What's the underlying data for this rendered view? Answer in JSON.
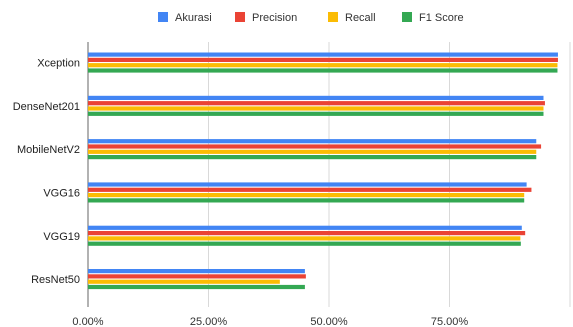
{
  "chart_data": {
    "type": "bar",
    "orientation": "horizontal",
    "categories": [
      "Xception",
      "DenseNet201",
      "MobileNetV2",
      "VGG16",
      "VGG19",
      "ResNet50"
    ],
    "series": [
      {
        "name": "Akurasi",
        "color": "#4285f4",
        "values": [
          97.5,
          94.5,
          93.0,
          91.0,
          90.0,
          45.0
        ]
      },
      {
        "name": "Precision",
        "color": "#ea4335",
        "values": [
          97.5,
          94.8,
          94.0,
          92.0,
          90.7,
          45.2
        ]
      },
      {
        "name": "Recall",
        "color": "#fbbc04",
        "values": [
          97.4,
          94.5,
          93.0,
          90.5,
          89.7,
          39.8
        ]
      },
      {
        "name": "F1 Score",
        "color": "#34a853",
        "values": [
          97.4,
          94.5,
          93.0,
          90.5,
          89.8,
          45.0
        ]
      }
    ],
    "xlim": [
      0,
      100
    ],
    "xticks": [
      0,
      25,
      50,
      75
    ],
    "xtick_labels": [
      "0.00%",
      "25.00%",
      "50.00%",
      "75.00%"
    ],
    "grid": "vertical",
    "legend": "top-center",
    "title": "",
    "xlabel": "",
    "ylabel": ""
  }
}
